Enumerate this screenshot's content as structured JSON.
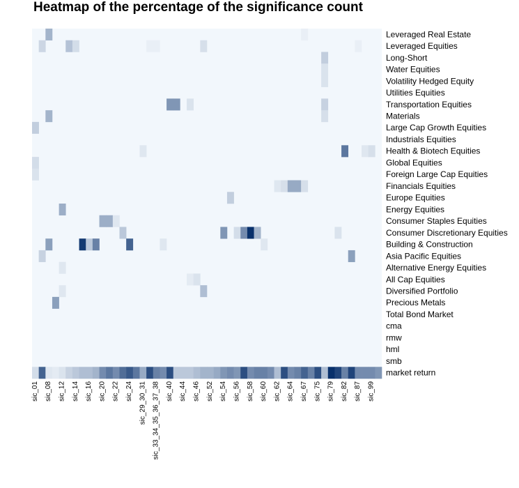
{
  "chart_data": {
    "type": "heatmap",
    "title": "Heatmap of the percentage of the significance count",
    "xlabel": "",
    "ylabel": "",
    "color_scale": {
      "low": "#f7fbff",
      "high": "#08306b"
    },
    "value_range": [
      0,
      1
    ],
    "x_tick_labels": [
      "sic_01",
      "sic_08",
      "sic_12",
      "sic_14",
      "sic_16",
      "sic_20",
      "sic_22",
      "sic_24",
      "sic_29_30_31",
      "sic_33_34_35_36_37_38",
      "sic_40",
      "sic_44",
      "sic_46",
      "sic_52",
      "sic_54",
      "sic_56",
      "sic_58",
      "sic_60",
      "sic_62",
      "sic_64",
      "sic_67",
      "sic_75",
      "sic_79",
      "sic_82",
      "sic_87",
      "sic_99"
    ],
    "rows": [
      "Leveraged Real Estate",
      "Leveraged Equities",
      "Long-Short",
      "Water Equities",
      "Volatility Hedged Equity",
      "Utilities Equities",
      "Transportation Equities",
      "Materials",
      "Large Cap Growth Equities",
      "Industrials Equities",
      "Health & Biotech Equities",
      "Global Equities",
      "Foreign Large Cap Equities",
      "Financials Equities",
      "Europe Equities",
      "Energy Equities",
      "Consumer Staples Equities",
      "Consumer Discretionary Equities",
      "Building & Construction",
      "Asia Pacific Equities",
      "Alternative Energy Equities",
      "All Cap Equities",
      "Diversified Portfolio",
      "Precious Metals",
      "Total Bond Market",
      "cma",
      "rmw",
      "hml",
      "smb",
      "market return"
    ],
    "n_columns": 52,
    "cells": [
      {
        "row": "Leveraged Real Estate",
        "col": 2,
        "value": 0.35
      },
      {
        "row": "Leveraged Real Estate",
        "col": 40,
        "value": 0.06
      },
      {
        "row": "Leveraged Equities",
        "col": 1,
        "value": 0.18
      },
      {
        "row": "Leveraged Equities",
        "col": 5,
        "value": 0.28
      },
      {
        "row": "Leveraged Equities",
        "col": 6,
        "value": 0.15
      },
      {
        "row": "Leveraged Equities",
        "col": 17,
        "value": 0.06
      },
      {
        "row": "Leveraged Equities",
        "col": 18,
        "value": 0.06
      },
      {
        "row": "Leveraged Equities",
        "col": 25,
        "value": 0.14
      },
      {
        "row": "Leveraged Equities",
        "col": 48,
        "value": 0.06
      },
      {
        "row": "Long-Short",
        "col": 43,
        "value": 0.22
      },
      {
        "row": "Water Equities",
        "col": 43,
        "value": 0.12
      },
      {
        "row": "Volatility Hedged Equity",
        "col": 43,
        "value": 0.12
      },
      {
        "row": "Transportation Equities",
        "col": 20,
        "value": 0.5
      },
      {
        "row": "Transportation Equities",
        "col": 21,
        "value": 0.5
      },
      {
        "row": "Transportation Equities",
        "col": 23,
        "value": 0.12
      },
      {
        "row": "Transportation Equities",
        "col": 43,
        "value": 0.2
      },
      {
        "row": "Materials",
        "col": 2,
        "value": 0.35
      },
      {
        "row": "Materials",
        "col": 43,
        "value": 0.14
      },
      {
        "row": "Large Cap Growth Equities",
        "col": 0,
        "value": 0.22
      },
      {
        "row": "Health & Biotech Equities",
        "col": 16,
        "value": 0.1
      },
      {
        "row": "Health & Biotech Equities",
        "col": 46,
        "value": 0.65
      },
      {
        "row": "Health & Biotech Equities",
        "col": 49,
        "value": 0.1
      },
      {
        "row": "Health & Biotech Equities",
        "col": 50,
        "value": 0.14
      },
      {
        "row": "Global Equities",
        "col": 0,
        "value": 0.15
      },
      {
        "row": "Foreign Large Cap Equities",
        "col": 0,
        "value": 0.12
      },
      {
        "row": "Financials Equities",
        "col": 36,
        "value": 0.1
      },
      {
        "row": "Financials Equities",
        "col": 37,
        "value": 0.14
      },
      {
        "row": "Financials Equities",
        "col": 38,
        "value": 0.4
      },
      {
        "row": "Financials Equities",
        "col": 39,
        "value": 0.4
      },
      {
        "row": "Financials Equities",
        "col": 40,
        "value": 0.14
      },
      {
        "row": "Europe Equities",
        "col": 29,
        "value": 0.22
      },
      {
        "row": "Energy Equities",
        "col": 4,
        "value": 0.38
      },
      {
        "row": "Consumer Staples Equities",
        "col": 10,
        "value": 0.38
      },
      {
        "row": "Consumer Staples Equities",
        "col": 11,
        "value": 0.38
      },
      {
        "row": "Consumer Staples Equities",
        "col": 12,
        "value": 0.1
      },
      {
        "row": "Consumer Discretionary Equities",
        "col": 13,
        "value": 0.25
      },
      {
        "row": "Consumer Discretionary Equities",
        "col": 28,
        "value": 0.5
      },
      {
        "row": "Consumer Discretionary Equities",
        "col": 30,
        "value": 0.15
      },
      {
        "row": "Consumer Discretionary Equities",
        "col": 31,
        "value": 0.55
      },
      {
        "row": "Consumer Discretionary Equities",
        "col": 32,
        "value": 1.0
      },
      {
        "row": "Consumer Discretionary Equities",
        "col": 33,
        "value": 0.35
      },
      {
        "row": "Consumer Discretionary Equities",
        "col": 45,
        "value": 0.12
      },
      {
        "row": "Building & Construction",
        "col": 2,
        "value": 0.45
      },
      {
        "row": "Building & Construction",
        "col": 7,
        "value": 0.95
      },
      {
        "row": "Building & Construction",
        "col": 8,
        "value": 0.25
      },
      {
        "row": "Building & Construction",
        "col": 9,
        "value": 0.6
      },
      {
        "row": "Building & Construction",
        "col": 14,
        "value": 0.75
      },
      {
        "row": "Building & Construction",
        "col": 19,
        "value": 0.1
      },
      {
        "row": "Building & Construction",
        "col": 34,
        "value": 0.1
      },
      {
        "row": "Asia Pacific Equities",
        "col": 1,
        "value": 0.2
      },
      {
        "row": "Asia Pacific Equities",
        "col": 47,
        "value": 0.45
      },
      {
        "row": "Alternative Energy Equities",
        "col": 4,
        "value": 0.1
      },
      {
        "row": "All Cap Equities",
        "col": 23,
        "value": 0.08
      },
      {
        "row": "All Cap Equities",
        "col": 24,
        "value": 0.12
      },
      {
        "row": "Diversified Portfolio",
        "col": 4,
        "value": 0.1
      },
      {
        "row": "Diversified Portfolio",
        "col": 25,
        "value": 0.3
      },
      {
        "row": "Precious Metals",
        "col": 3,
        "value": 0.45
      },
      {
        "row": "market return",
        "col": 0,
        "value": 0.15
      },
      {
        "row": "market return",
        "col": 1,
        "value": 0.75
      },
      {
        "row": "market return",
        "col": 2,
        "value": 0.1
      },
      {
        "row": "market return",
        "col": 3,
        "value": 0.08
      },
      {
        "row": "market return",
        "col": 4,
        "value": 0.12
      },
      {
        "row": "market return",
        "col": 5,
        "value": 0.2
      },
      {
        "row": "market return",
        "col": 6,
        "value": 0.25
      },
      {
        "row": "market return",
        "col": 7,
        "value": 0.3
      },
      {
        "row": "market return",
        "col": 8,
        "value": 0.3
      },
      {
        "row": "market return",
        "col": 9,
        "value": 0.35
      },
      {
        "row": "market return",
        "col": 10,
        "value": 0.55
      },
      {
        "row": "market return",
        "col": 11,
        "value": 0.65
      },
      {
        "row": "market return",
        "col": 12,
        "value": 0.55
      },
      {
        "row": "market return",
        "col": 13,
        "value": 0.7
      },
      {
        "row": "market return",
        "col": 14,
        "value": 0.8
      },
      {
        "row": "market return",
        "col": 15,
        "value": 0.65
      },
      {
        "row": "market return",
        "col": 16,
        "value": 0.4
      },
      {
        "row": "market return",
        "col": 17,
        "value": 0.85
      },
      {
        "row": "market return",
        "col": 18,
        "value": 0.6
      },
      {
        "row": "market return",
        "col": 19,
        "value": 0.55
      },
      {
        "row": "market return",
        "col": 20,
        "value": 0.85
      },
      {
        "row": "market return",
        "col": 21,
        "value": 0.25
      },
      {
        "row": "market return",
        "col": 22,
        "value": 0.25
      },
      {
        "row": "market return",
        "col": 23,
        "value": 0.25
      },
      {
        "row": "market return",
        "col": 24,
        "value": 0.3
      },
      {
        "row": "market return",
        "col": 25,
        "value": 0.35
      },
      {
        "row": "market return",
        "col": 26,
        "value": 0.35
      },
      {
        "row": "market return",
        "col": 27,
        "value": 0.4
      },
      {
        "row": "market return",
        "col": 28,
        "value": 0.5
      },
      {
        "row": "market return",
        "col": 29,
        "value": 0.55
      },
      {
        "row": "market return",
        "col": 30,
        "value": 0.5
      },
      {
        "row": "market return",
        "col": 31,
        "value": 0.85
      },
      {
        "row": "market return",
        "col": 32,
        "value": 0.55
      },
      {
        "row": "market return",
        "col": 33,
        "value": 0.6
      },
      {
        "row": "market return",
        "col": 34,
        "value": 0.6
      },
      {
        "row": "market return",
        "col": 35,
        "value": 0.55
      },
      {
        "row": "market return",
        "col": 36,
        "value": 0.3
      },
      {
        "row": "market return",
        "col": 37,
        "value": 0.85
      },
      {
        "row": "market return",
        "col": 38,
        "value": 0.55
      },
      {
        "row": "market return",
        "col": 39,
        "value": 0.6
      },
      {
        "row": "market return",
        "col": 40,
        "value": 0.75
      },
      {
        "row": "market return",
        "col": 41,
        "value": 0.6
      },
      {
        "row": "market return",
        "col": 42,
        "value": 0.85
      },
      {
        "row": "market return",
        "col": 43,
        "value": 0.3
      },
      {
        "row": "market return",
        "col": 44,
        "value": 1.0
      },
      {
        "row": "market return",
        "col": 45,
        "value": 0.9
      },
      {
        "row": "market return",
        "col": 46,
        "value": 0.6
      },
      {
        "row": "market return",
        "col": 47,
        "value": 0.9
      },
      {
        "row": "market return",
        "col": 48,
        "value": 0.55
      },
      {
        "row": "market return",
        "col": 49,
        "value": 0.55
      },
      {
        "row": "market return",
        "col": 50,
        "value": 0.55
      },
      {
        "row": "market return",
        "col": 51,
        "value": 0.5
      }
    ]
  }
}
